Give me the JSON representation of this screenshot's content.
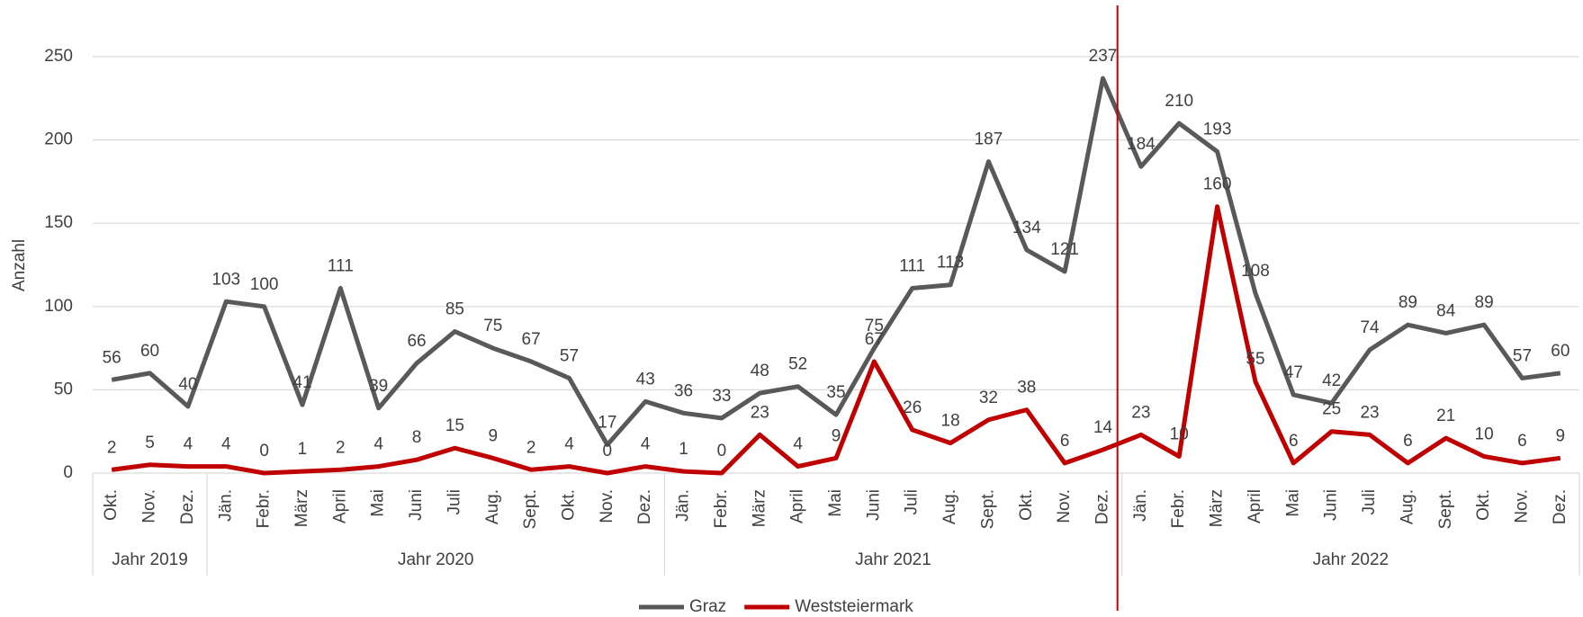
{
  "chart_data": {
    "type": "line",
    "y_label": "Anzahl",
    "categories": [
      "Okt.",
      "Nov.",
      "Dez.",
      "Jän.",
      "Febr.",
      "März",
      "April",
      "Mai",
      "Juni",
      "Juli",
      "Aug.",
      "Sept.",
      "Okt.",
      "Nov.",
      "Dez.",
      "Jän.",
      "Febr.",
      "März",
      "April",
      "Mai",
      "Juni",
      "Juli",
      "Aug.",
      "Sept.",
      "Okt.",
      "Nov.",
      "Dez.",
      "Jän.",
      "Febr.",
      "März",
      "April",
      "Mai",
      "Juni",
      "Juli",
      "Aug.",
      "Sept.",
      "Okt.",
      "Nov.",
      "Dez."
    ],
    "groups": [
      {
        "name": "Jahr 2019",
        "size": 3
      },
      {
        "name": "Jahr 2020",
        "size": 12
      },
      {
        "name": "Jahr 2021",
        "size": 12
      },
      {
        "name": "Jahr 2022",
        "size": 12
      }
    ],
    "series": [
      {
        "name": "Graz",
        "color": "#595959",
        "values": [
          56,
          60,
          40,
          103,
          100,
          41,
          111,
          39,
          66,
          85,
          75,
          67,
          57,
          17,
          43,
          36,
          33,
          48,
          52,
          35,
          75,
          111,
          113,
          187,
          134,
          121,
          237,
          184,
          210,
          193,
          108,
          47,
          42,
          74,
          89,
          84,
          89,
          57,
          60
        ]
      },
      {
        "name": "Weststeiermark",
        "color": "#c00000",
        "values": [
          2,
          5,
          4,
          4,
          0,
          1,
          2,
          4,
          8,
          15,
          9,
          2,
          4,
          0,
          4,
          1,
          0,
          23,
          4,
          9,
          67,
          26,
          18,
          32,
          38,
          6,
          14,
          23,
          10,
          160,
          55,
          6,
          25,
          23,
          6,
          21,
          10,
          6,
          9
        ]
      }
    ],
    "ylim": [
      0,
      250
    ],
    "yticks": [
      0,
      50,
      100,
      150,
      200,
      250
    ],
    "grid": true,
    "legend": "bottom"
  }
}
